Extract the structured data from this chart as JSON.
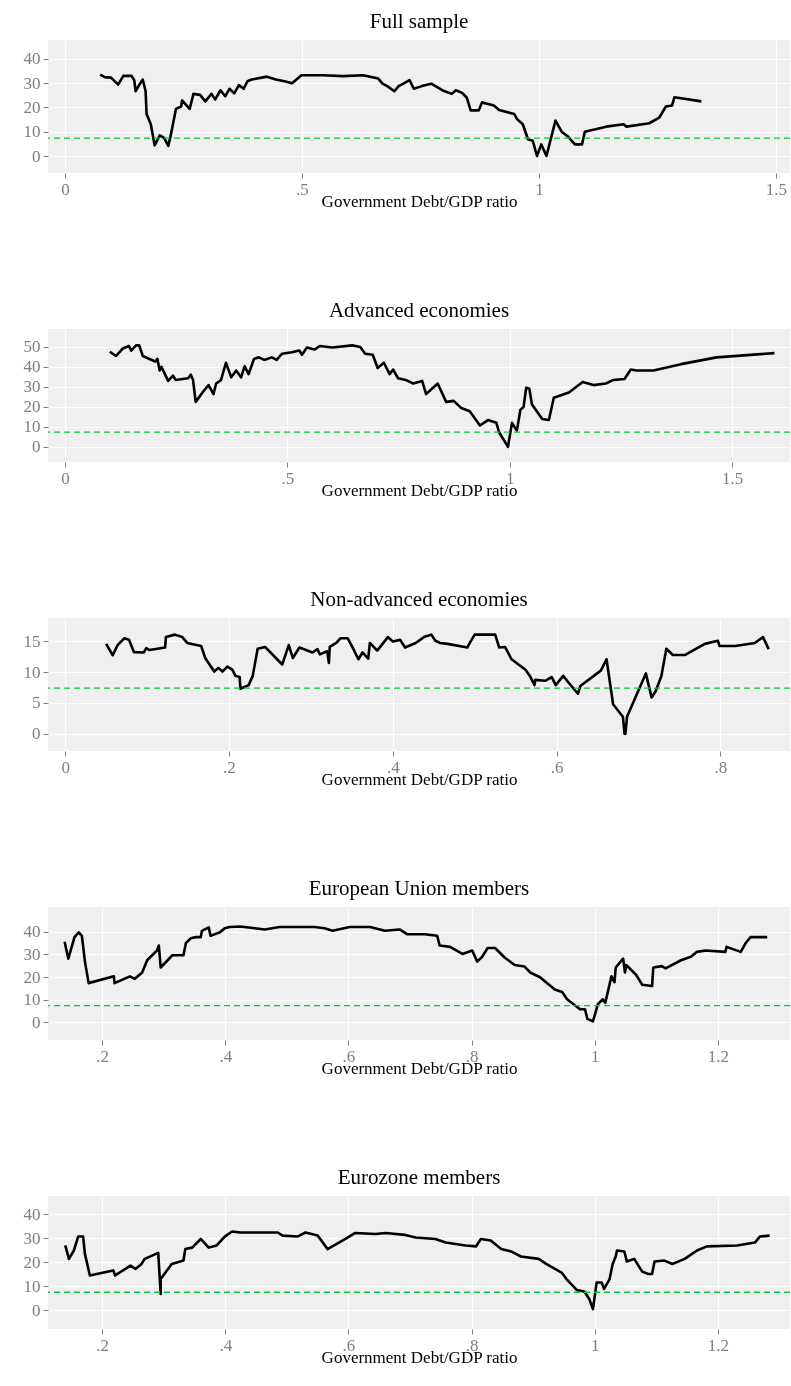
{
  "chart_data": [
    {
      "type": "line",
      "title": "Full sample",
      "xlabel": "Government Debt/GDP ratio",
      "xlim": [
        -0.036,
        1.53
      ],
      "ylim": [
        -7,
        47.8
      ],
      "xticks": [
        0,
        {
          "value": 0.5,
          "label": ".5"
        },
        1,
        1.5
      ],
      "yticks": [
        0,
        10,
        20,
        30,
        40
      ],
      "grid": true,
      "ref_lines": [
        {
          "axis": "y",
          "value": 7.4,
          "color": "#00cc33",
          "line_style": "dashed"
        }
      ],
      "series": [
        {
          "color": "#000000",
          "x": [
            0.074,
            0.084,
            0.097,
            0.112,
            0.123,
            0.14,
            0.146,
            0.149,
            0.157,
            0.164,
            0.17,
            0.172,
            0.181,
            0.189,
            0.2,
            0.209,
            0.218,
            0.223,
            0.234,
            0.245,
            0.247,
            0.263,
            0.271,
            0.285,
            0.296,
            0.309,
            0.317,
            0.328,
            0.338,
            0.347,
            0.357,
            0.367,
            0.377,
            0.385,
            0.394,
            0.405,
            0.415,
            0.426,
            0.445,
            0.463,
            0.479,
            0.499,
            0.544,
            0.586,
            0.629,
            0.661,
            0.67,
            0.68,
            0.695,
            0.704,
            0.714,
            0.727,
            0.736,
            0.753,
            0.773,
            0.796,
            0.816,
            0.825,
            0.838,
            0.848,
            0.856,
            0.873,
            0.88,
            0.905,
            0.916,
            0.948,
            0.954,
            0.966,
            0.977,
            0.987,
            0.996,
            1.005,
            1.016,
            1.035,
            1.048,
            1.062,
            1.076,
            1.091,
            1.097,
            1.142,
            1.179,
            1.185,
            1.233,
            1.254,
            1.268,
            1.281,
            1.286,
            1.343
          ],
          "values": [
            33.5,
            32.5,
            32.3,
            29.4,
            33,
            33.1,
            31.2,
            26.7,
            29.4,
            31.5,
            26.7,
            17.3,
            13.1,
            4.4,
            8.5,
            7.5,
            4.2,
            8.5,
            19.4,
            20.4,
            22.9,
            19.4,
            25.6,
            25.2,
            22.5,
            25.6,
            23.3,
            27.1,
            24.6,
            27.7,
            25.8,
            29.2,
            27.7,
            30.8,
            31.5,
            31.9,
            32.3,
            32.7,
            31.5,
            30.8,
            30,
            33.3,
            33.3,
            32.9,
            33.3,
            31.9,
            29.8,
            28.8,
            26.7,
            28.8,
            29.8,
            31.3,
            27.7,
            28.8,
            29.8,
            27.1,
            25.6,
            27.1,
            26,
            24,
            18.8,
            18.8,
            22.1,
            20.8,
            19,
            17.3,
            15.2,
            13.1,
            6.9,
            6.3,
            0,
            4.8,
            0,
            14.6,
            10,
            7.9,
            4.8,
            4.8,
            10,
            12.1,
            13.1,
            12.1,
            13.5,
            15.8,
            20.4,
            20.8,
            24.2,
            22.5
          ]
        }
      ]
    },
    {
      "type": "line",
      "title": "Advanced economies",
      "xlabel": "Government Debt/GDP ratio",
      "xlim": [
        -0.038,
        1.63
      ],
      "ylim": [
        -7.6,
        59
      ],
      "xticks": [
        0,
        {
          "value": 0.5,
          "label": ".5"
        },
        1,
        1.5
      ],
      "yticks": [
        0,
        10,
        20,
        30,
        40,
        50
      ],
      "grid": true,
      "ref_lines": [
        {
          "axis": "y",
          "value": 7.4,
          "color": "#00cc33",
          "line_style": "dashed"
        }
      ],
      "series": [
        {
          "color": "#000000",
          "x": [
            0.101,
            0.115,
            0.13,
            0.144,
            0.149,
            0.16,
            0.167,
            0.175,
            0.19,
            0.203,
            0.208,
            0.213,
            0.217,
            0.232,
            0.243,
            0.249,
            0.277,
            0.283,
            0.288,
            0.294,
            0.311,
            0.323,
            0.334,
            0.34,
            0.351,
            0.362,
            0.374,
            0.385,
            0.396,
            0.404,
            0.413,
            0.425,
            0.436,
            0.448,
            0.465,
            0.476,
            0.488,
            0.51,
            0.527,
            0.533,
            0.544,
            0.561,
            0.573,
            0.601,
            0.646,
            0.664,
            0.675,
            0.692,
            0.703,
            0.717,
            0.73,
            0.738,
            0.749,
            0.766,
            0.783,
            0.803,
            0.812,
            0.838,
            0.857,
            0.874,
            0.891,
            0.91,
            0.933,
            0.951,
            0.97,
            0.976,
            0.988,
            0.996,
            1.005,
            1.016,
            1.024,
            1.031,
            1.037,
            1.044,
            1.05,
            1.073,
            1.088,
            1.099,
            1.133,
            1.164,
            1.188,
            1.216,
            1.233,
            1.258,
            1.272,
            1.285,
            1.323,
            1.385,
            1.465,
            1.595
          ],
          "values": [
            47.6,
            45.5,
            49.2,
            50.5,
            48.2,
            50.8,
            50.8,
            45.5,
            44,
            42.7,
            44,
            38.2,
            40.1,
            33,
            35.6,
            33.5,
            34.3,
            36.1,
            33.5,
            22.5,
            27.7,
            30.9,
            26.4,
            31.7,
            33.5,
            42.1,
            34.8,
            38.2,
            34.8,
            40.3,
            36.4,
            44,
            44.8,
            43.5,
            44.8,
            43.5,
            46.6,
            47.4,
            48.2,
            46.1,
            49.7,
            48.7,
            50.5,
            49.7,
            50.8,
            50,
            46.6,
            46.1,
            39.5,
            42.1,
            36.4,
            38.7,
            34.3,
            33.5,
            31.7,
            33,
            26.4,
            31.7,
            22.5,
            23,
            19.4,
            17.8,
            10.7,
            13.4,
            12,
            7.3,
            2.9,
            0,
            12,
            8.1,
            18.6,
            19.9,
            29.6,
            29.1,
            21.2,
            13.9,
            13.4,
            24.6,
            27.2,
            32.5,
            30.9,
            31.7,
            33.5,
            34,
            38.7,
            38.2,
            38.2,
            41.4,
            44.8,
            46.9
          ]
        }
      ]
    },
    {
      "type": "line",
      "title": "Non-advanced economies",
      "xlabel": "Government Debt/GDP ratio",
      "xlim": [
        -0.021,
        0.885
      ],
      "ylim": [
        -2.8,
        18.8
      ],
      "xticks": [
        0,
        {
          "value": 0.2,
          "label": ".2"
        },
        {
          "value": 0.4,
          "label": ".4"
        },
        {
          "value": 0.6,
          "label": ".6"
        },
        {
          "value": 0.8,
          "label": ".8"
        }
      ],
      "yticks": [
        0,
        5,
        10,
        15
      ],
      "grid": true,
      "ref_lines": [
        {
          "axis": "y",
          "value": 7.4,
          "color": "#00cc33",
          "line_style": "dashed"
        }
      ],
      "series": [
        {
          "color": "#000000",
          "x": [
            0.05,
            0.058,
            0.064,
            0.072,
            0.078,
            0.084,
            0.096,
            0.099,
            0.103,
            0.122,
            0.123,
            0.134,
            0.143,
            0.149,
            0.166,
            0.171,
            0.177,
            0.182,
            0.187,
            0.192,
            0.198,
            0.204,
            0.208,
            0.213,
            0.214,
            0.224,
            0.229,
            0.235,
            0.244,
            0.265,
            0.273,
            0.278,
            0.286,
            0.302,
            0.308,
            0.311,
            0.32,
            0.322,
            0.323,
            0.331,
            0.336,
            0.345,
            0.351,
            0.358,
            0.363,
            0.37,
            0.372,
            0.381,
            0.394,
            0.4,
            0.409,
            0.415,
            0.428,
            0.438,
            0.447,
            0.452,
            0.458,
            0.467,
            0.491,
            0.494,
            0.5,
            0.525,
            0.53,
            0.537,
            0.545,
            0.562,
            0.568,
            0.573,
            0.574,
            0.586,
            0.594,
            0.599,
            0.608,
            0.614,
            0.626,
            0.629,
            0.654,
            0.661,
            0.669,
            0.681,
            0.683,
            0.684,
            0.686,
            0.709,
            0.716,
            0.721,
            0.728,
            0.734,
            0.742,
            0.757,
            0.781,
            0.797,
            0.799,
            0.818,
            0.842,
            0.852,
            0.859
          ],
          "values": [
            14.6,
            12.75,
            14.4,
            15.5,
            15.25,
            13.25,
            13.2,
            13.9,
            13.6,
            14,
            15.7,
            16.1,
            15.7,
            14.75,
            14.25,
            12.3,
            11.1,
            10.1,
            10.7,
            10.1,
            10.9,
            10.4,
            9.4,
            9.2,
            7.3,
            7.9,
            9.4,
            13.8,
            14.1,
            11.25,
            14.4,
            12.3,
            14,
            13.2,
            13.75,
            12.9,
            13.4,
            11.5,
            14.1,
            14.75,
            15.5,
            15.5,
            14,
            12.1,
            13.2,
            12.2,
            14.75,
            13.5,
            15.7,
            15,
            15.25,
            14,
            14.75,
            15.7,
            16.1,
            15.1,
            14.75,
            14.6,
            14,
            14.75,
            16.1,
            16.1,
            14,
            14.1,
            12.1,
            10.4,
            9.25,
            7.9,
            8.75,
            8.6,
            9.2,
            7.9,
            9.4,
            8.4,
            6.5,
            7.75,
            10.25,
            12.1,
            4.8,
            2.75,
            0,
            0,
            2.75,
            9.8,
            5.9,
            6.9,
            9.4,
            13.8,
            12.8,
            12.8,
            14.6,
            15.1,
            14.25,
            14.25,
            14.75,
            15.7,
            13.75
          ]
        }
      ]
    },
    {
      "type": "line",
      "title": "European Union members",
      "xlabel": "Government Debt/GDP ratio",
      "xlim": [
        0.112,
        1.317
      ],
      "ylim": [
        -7.8,
        50.9
      ],
      "xticks": [
        {
          "value": 0.2,
          "label": ".2"
        },
        {
          "value": 0.4,
          "label": ".4"
        },
        {
          "value": 0.6,
          "label": ".6"
        },
        {
          "value": 0.8,
          "label": ".8"
        },
        1,
        1.2
      ],
      "yticks": [
        0,
        10,
        20,
        30,
        40
      ],
      "grid": true,
      "ref_lines": [
        {
          "axis": "y",
          "value": 7.4,
          "color": "#00cc33",
          "line_style": "dashed"
        }
      ],
      "series": [
        {
          "color": "#000000",
          "x": [
            0.139,
            0.145,
            0.155,
            0.162,
            0.167,
            0.172,
            0.178,
            0.219,
            0.22,
            0.245,
            0.253,
            0.265,
            0.273,
            0.289,
            0.292,
            0.295,
            0.314,
            0.332,
            0.336,
            0.344,
            0.352,
            0.36,
            0.362,
            0.373,
            0.376,
            0.391,
            0.399,
            0.407,
            0.424,
            0.448,
            0.464,
            0.488,
            0.521,
            0.545,
            0.561,
            0.574,
            0.602,
            0.635,
            0.659,
            0.683,
            0.695,
            0.724,
            0.744,
            0.748,
            0.765,
            0.785,
            0.801,
            0.809,
            0.817,
            0.826,
            0.838,
            0.854,
            0.87,
            0.886,
            0.895,
            0.911,
            0.935,
            0.947,
            0.955,
            0.976,
            0.984,
            0.988,
            0.997,
            1.005,
            1.013,
            1.017,
            1.027,
            1.032,
            1.034,
            1.046,
            1.049,
            1.051,
            1.067,
            1.077,
            1.093,
            1.095,
            1.109,
            1.115,
            1.14,
            1.156,
            1.166,
            1.18,
            1.212,
            1.214,
            1.237,
            1.245,
            1.253,
            1.28
          ],
          "values": [
            35.6,
            28.1,
            37.6,
            39.7,
            38.2,
            26.8,
            17.3,
            20.3,
            17.3,
            20.3,
            19.2,
            22,
            27.4,
            31.7,
            33.9,
            24.2,
            29.6,
            29.6,
            35,
            37.1,
            37.6,
            37.6,
            40.4,
            41.9,
            38.2,
            39.7,
            41.5,
            42.1,
            42.3,
            41.5,
            41,
            42.1,
            42.1,
            42.1,
            41.5,
            40.4,
            42.1,
            42.1,
            40.4,
            41,
            38.9,
            38.9,
            38.2,
            33.9,
            33.3,
            30.2,
            31.7,
            26.8,
            28.9,
            32.8,
            32.8,
            28.5,
            25.3,
            24.6,
            22,
            19.9,
            14.5,
            13.4,
            10.2,
            5.8,
            5.8,
            1.5,
            0.4,
            8,
            10.2,
            8.6,
            20.3,
            17.7,
            24.2,
            28.1,
            22,
            25.3,
            21,
            16.6,
            16,
            24.2,
            24.8,
            23.8,
            27.4,
            28.9,
            31.1,
            31.7,
            31.1,
            33.3,
            31.1,
            35,
            37.6,
            37.6
          ]
        }
      ]
    },
    {
      "type": "line",
      "title": "Eurozone members",
      "xlabel": "Government Debt/GDP ratio",
      "xlim": [
        0.112,
        1.317
      ],
      "ylim": [
        -7.9,
        47.5
      ],
      "xticks": [
        {
          "value": 0.2,
          "label": ".2"
        },
        {
          "value": 0.4,
          "label": ".4"
        },
        {
          "value": 0.6,
          "label": ".6"
        },
        {
          "value": 0.8,
          "label": ".8"
        },
        1,
        1.2
      ],
      "yticks": [
        0,
        10,
        20,
        30,
        40
      ],
      "grid": true,
      "ref_lines": [
        {
          "axis": "y",
          "value": 7.4,
          "color": "#00cc33",
          "line_style": "dashed"
        }
      ],
      "series": [
        {
          "color": "#000000",
          "x": [
            0.14,
            0.146,
            0.154,
            0.161,
            0.169,
            0.172,
            0.18,
            0.218,
            0.221,
            0.246,
            0.254,
            0.264,
            0.269,
            0.291,
            0.295,
            0.295,
            0.313,
            0.332,
            0.335,
            0.346,
            0.36,
            0.373,
            0.386,
            0.399,
            0.411,
            0.424,
            0.456,
            0.485,
            0.493,
            0.517,
            0.53,
            0.55,
            0.566,
            0.595,
            0.611,
            0.644,
            0.66,
            0.692,
            0.709,
            0.741,
            0.758,
            0.79,
            0.807,
            0.815,
            0.831,
            0.848,
            0.864,
            0.88,
            0.909,
            0.921,
            0.946,
            0.954,
            0.971,
            0.983,
            0.991,
            0.997,
            1.003,
            1.011,
            1.015,
            1.024,
            1.029,
            1.034,
            1.036,
            1.048,
            1.052,
            1.064,
            1.077,
            1.087,
            1.093,
            1.097,
            1.113,
            1.126,
            1.146,
            1.166,
            1.182,
            1.231,
            1.26,
            1.268,
            1.284
          ],
          "values": [
            26.9,
            21.3,
            24.8,
            30.6,
            30.6,
            23.3,
            14.4,
            16.5,
            14.4,
            18.5,
            17.1,
            19.2,
            21.3,
            23.8,
            6.7,
            12.9,
            19.2,
            20.6,
            25.4,
            26,
            29.6,
            26,
            26.9,
            30.6,
            32.7,
            32.3,
            32.3,
            32.3,
            31,
            30.6,
            32.3,
            31,
            25.4,
            29.6,
            32.1,
            31.7,
            32.1,
            31.3,
            30.2,
            29.6,
            28.1,
            26.9,
            26.5,
            29.6,
            29,
            25.4,
            24.4,
            22.3,
            21.3,
            19.2,
            15.6,
            12.9,
            8.3,
            7.7,
            4.6,
            0.4,
            11.5,
            11.5,
            8.8,
            12.9,
            19.2,
            22.3,
            24.8,
            24.4,
            20.2,
            21.3,
            16,
            15,
            15,
            20.2,
            20.6,
            19.2,
            21.3,
            24.8,
            26.5,
            26.9,
            28.1,
            30.6,
            31
          ]
        }
      ]
    }
  ]
}
